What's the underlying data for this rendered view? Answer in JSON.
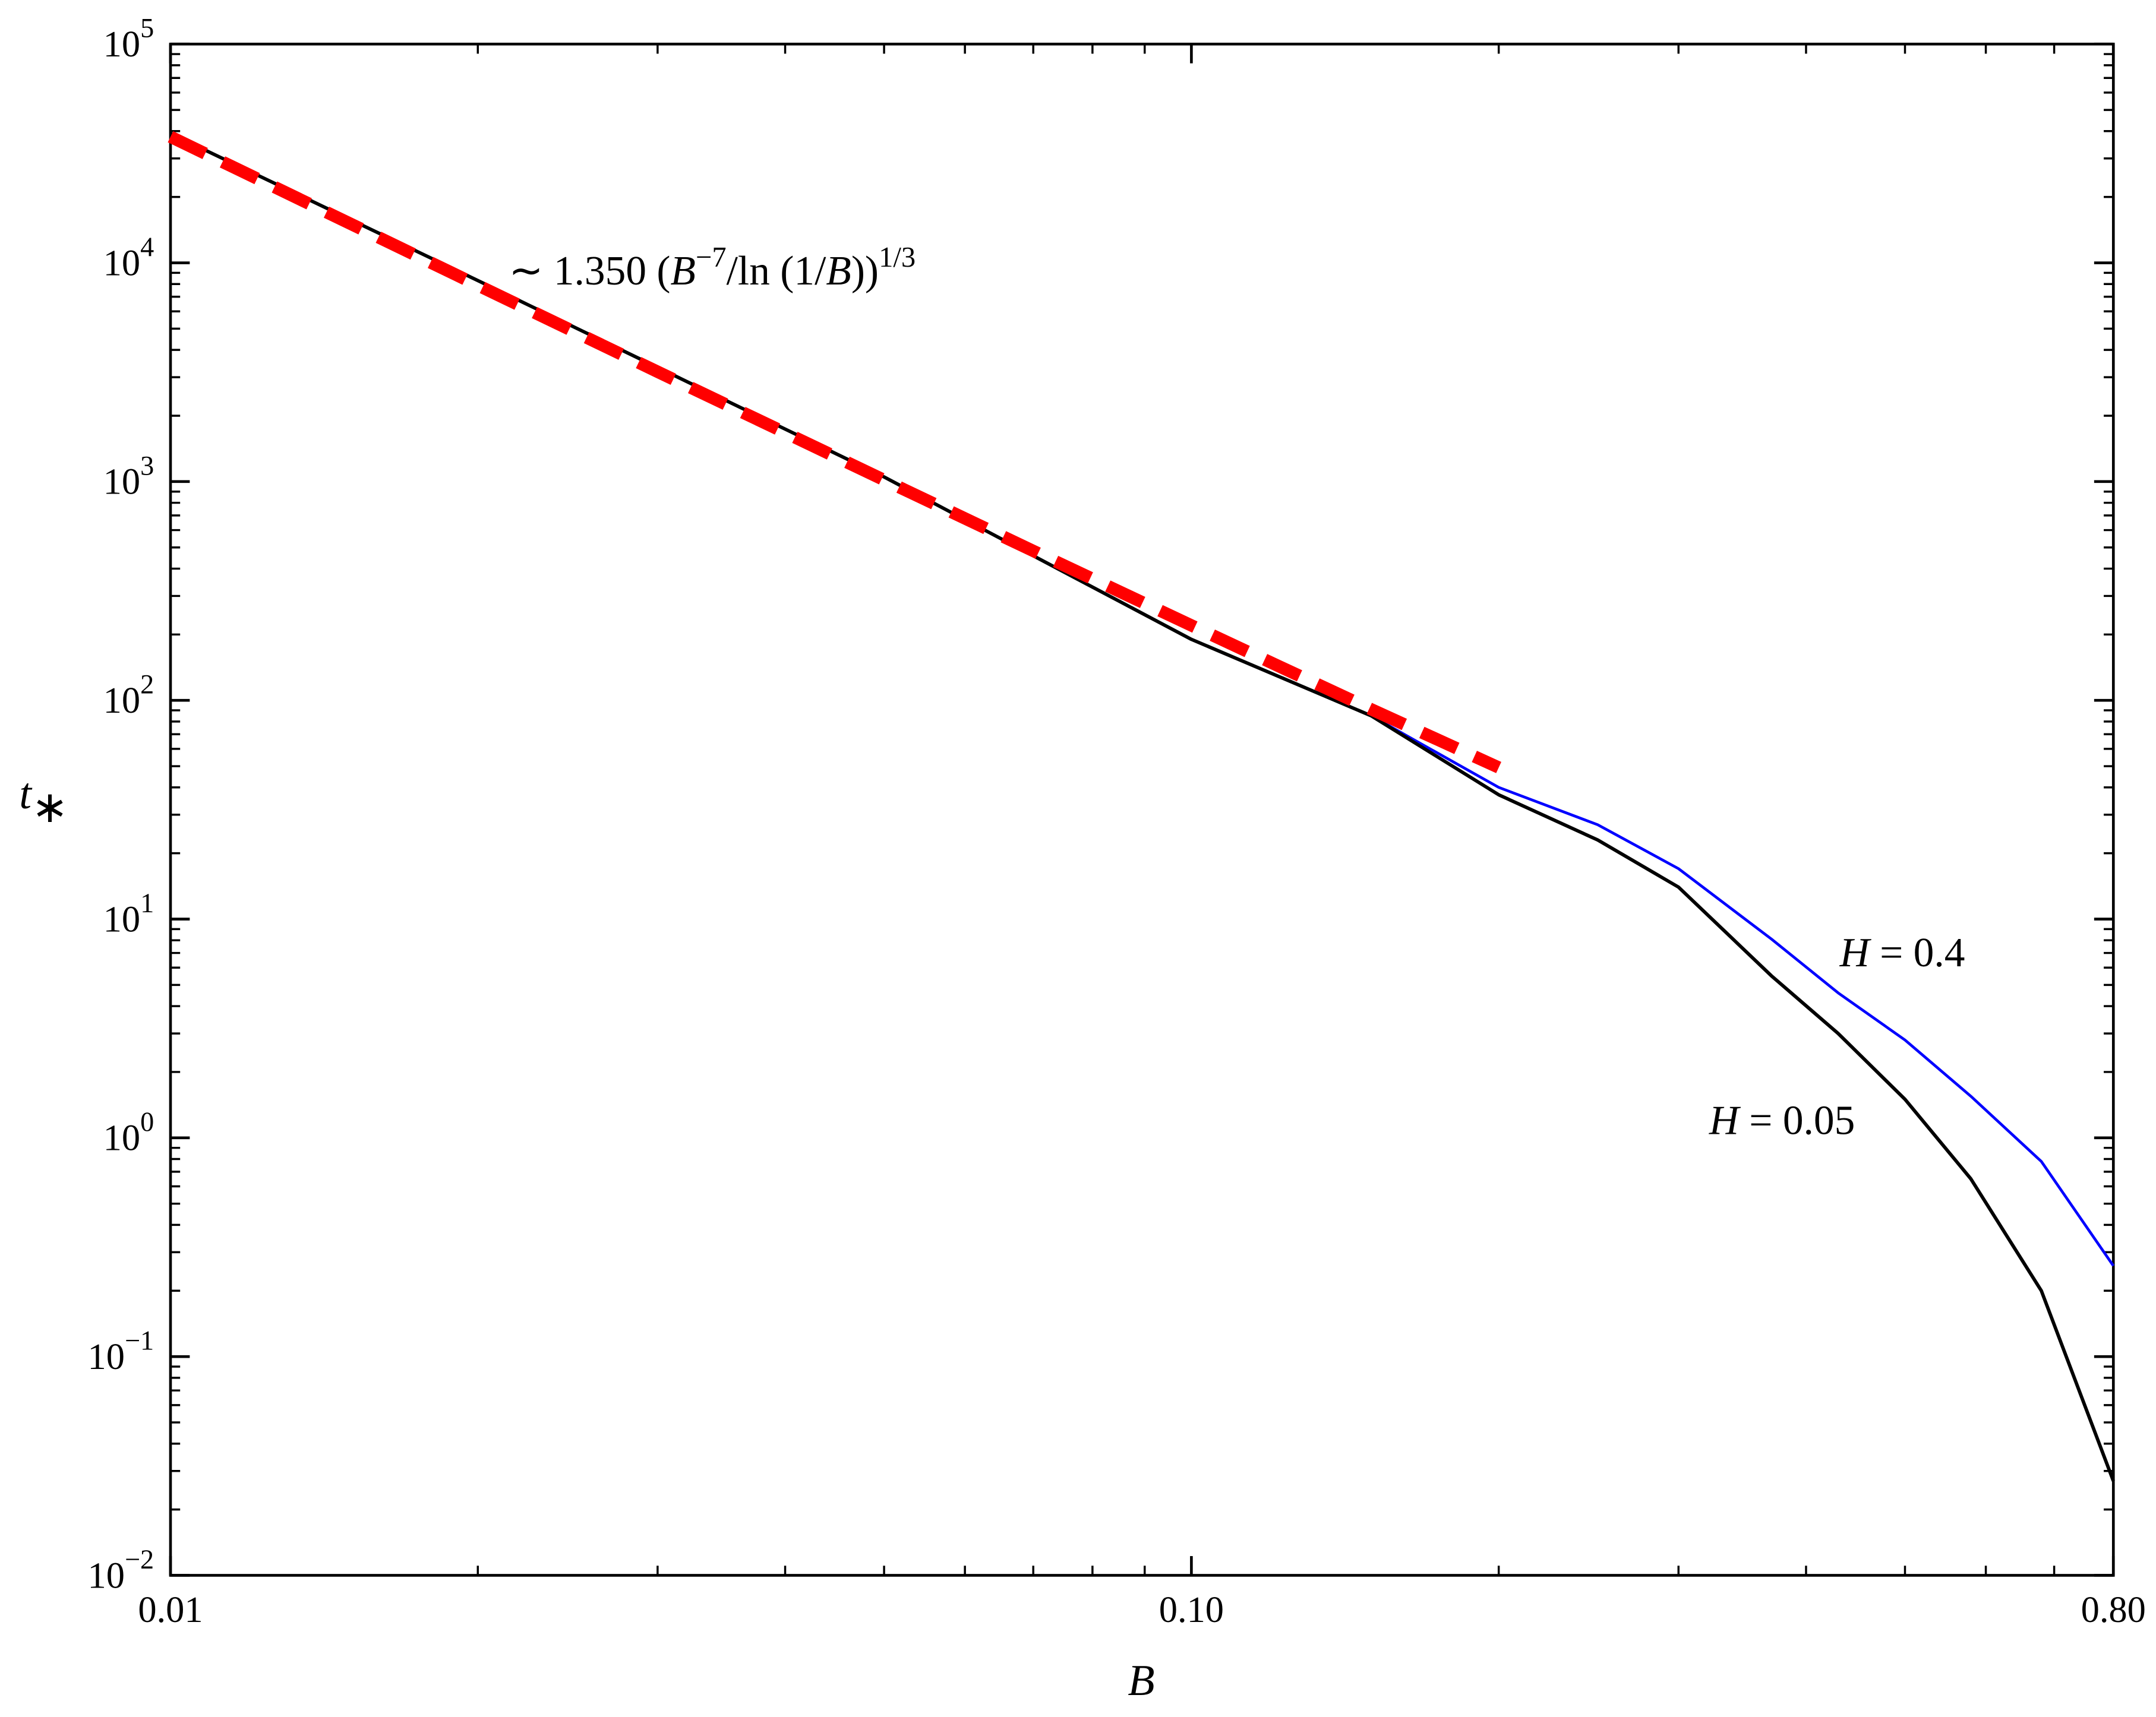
{
  "chart_data": {
    "type": "line",
    "xlabel": "B",
    "ylabel": "t",
    "ylabel_sub": "∗",
    "xlog": true,
    "ylog": true,
    "xlim": [
      0.01,
      0.8
    ],
    "ylim": [
      0.01,
      100000
    ],
    "xticks": [
      0.01,
      {
        "value": 0.1,
        "label": "0.10"
      },
      {
        "value": 0.8,
        "label": "0.80"
      }
    ],
    "xminor_ticks": [
      0.02,
      0.03,
      0.04,
      0.05,
      0.06,
      0.07,
      0.08,
      0.09,
      0.2,
      0.3,
      0.4,
      0.5,
      0.6,
      0.7
    ],
    "yticks": [
      {
        "value": 0.01,
        "label": "10",
        "exponent": "−2"
      },
      {
        "value": 0.1,
        "label": "10",
        "exponent": "−1"
      },
      {
        "value": 1,
        "label": "10",
        "exponent": "0"
      },
      {
        "value": 10,
        "label": "10",
        "exponent": "1"
      },
      {
        "value": 100,
        "label": "10",
        "exponent": "2"
      },
      {
        "value": 1000,
        "label": "10",
        "exponent": "3"
      },
      {
        "value": 10000,
        "label": "10",
        "exponent": "4"
      },
      {
        "value": 100000,
        "label": "10",
        "exponent": "5"
      }
    ],
    "yminor_ticks": [
      0.02,
      0.03,
      0.04,
      0.05,
      0.06,
      0.07,
      0.08,
      0.09,
      0.2,
      0.3,
      0.4,
      0.5,
      0.6,
      0.7,
      0.8,
      0.9,
      2,
      3,
      4,
      5,
      6,
      7,
      8,
      9,
      20,
      30,
      40,
      50,
      60,
      70,
      80,
      90,
      200,
      300,
      400,
      500,
      600,
      700,
      800,
      900,
      2000,
      3000,
      4000,
      5000,
      6000,
      7000,
      8000,
      9000,
      20000,
      30000,
      40000,
      50000,
      60000,
      70000,
      80000,
      90000
    ],
    "series": [
      {
        "color": "#0000ff",
        "width": 2,
        "dash": null,
        "label_parts": [
          {
            "text": "H",
            "italic": true
          },
          {
            "text": " = 0.4"
          }
        ],
        "x": [
          0.01,
          0.02,
          0.05,
          0.1,
          0.15,
          0.2,
          0.25,
          0.3,
          0.37,
          0.43,
          0.5,
          0.58,
          0.68,
          0.8
        ],
        "values": [
          39000,
          8300,
          1050,
          190,
          85,
          40,
          27,
          17,
          8.1,
          4.6,
          2.8,
          1.55,
          0.78,
          0.26
        ]
      },
      {
        "color": "#000000",
        "width": 2.5,
        "dash": null,
        "label_parts": [
          {
            "text": "H",
            "italic": true
          },
          {
            "text": " = 0.05"
          }
        ],
        "x": [
          0.01,
          0.02,
          0.05,
          0.1,
          0.15,
          0.2,
          0.25,
          0.3,
          0.37,
          0.43,
          0.5,
          0.58,
          0.68,
          0.8
        ],
        "values": [
          39000,
          8300,
          1050,
          190,
          85,
          37,
          23,
          14,
          5.5,
          3.0,
          1.5,
          0.65,
          0.2,
          0.027
        ]
      },
      {
        "color": "#ff0000",
        "width": 9,
        "dash": "28 14",
        "label_parts": [
          {
            "text": "∼ 1.350 ("
          },
          {
            "text": "B",
            "italic": true
          },
          {
            "text": "−7",
            "sup": true
          },
          {
            "text": "/ln (1/"
          },
          {
            "text": "B",
            "italic": true
          },
          {
            "text": "))"
          },
          {
            "text": "1/3",
            "sup": true
          }
        ],
        "x": [
          0.01,
          0.02,
          0.03,
          0.05,
          0.07,
          0.1,
          0.15,
          0.2
        ],
        "values": [
          37700,
          7890,
          3177,
          1017,
          482,
          220,
          91,
          49.3
        ]
      }
    ]
  }
}
